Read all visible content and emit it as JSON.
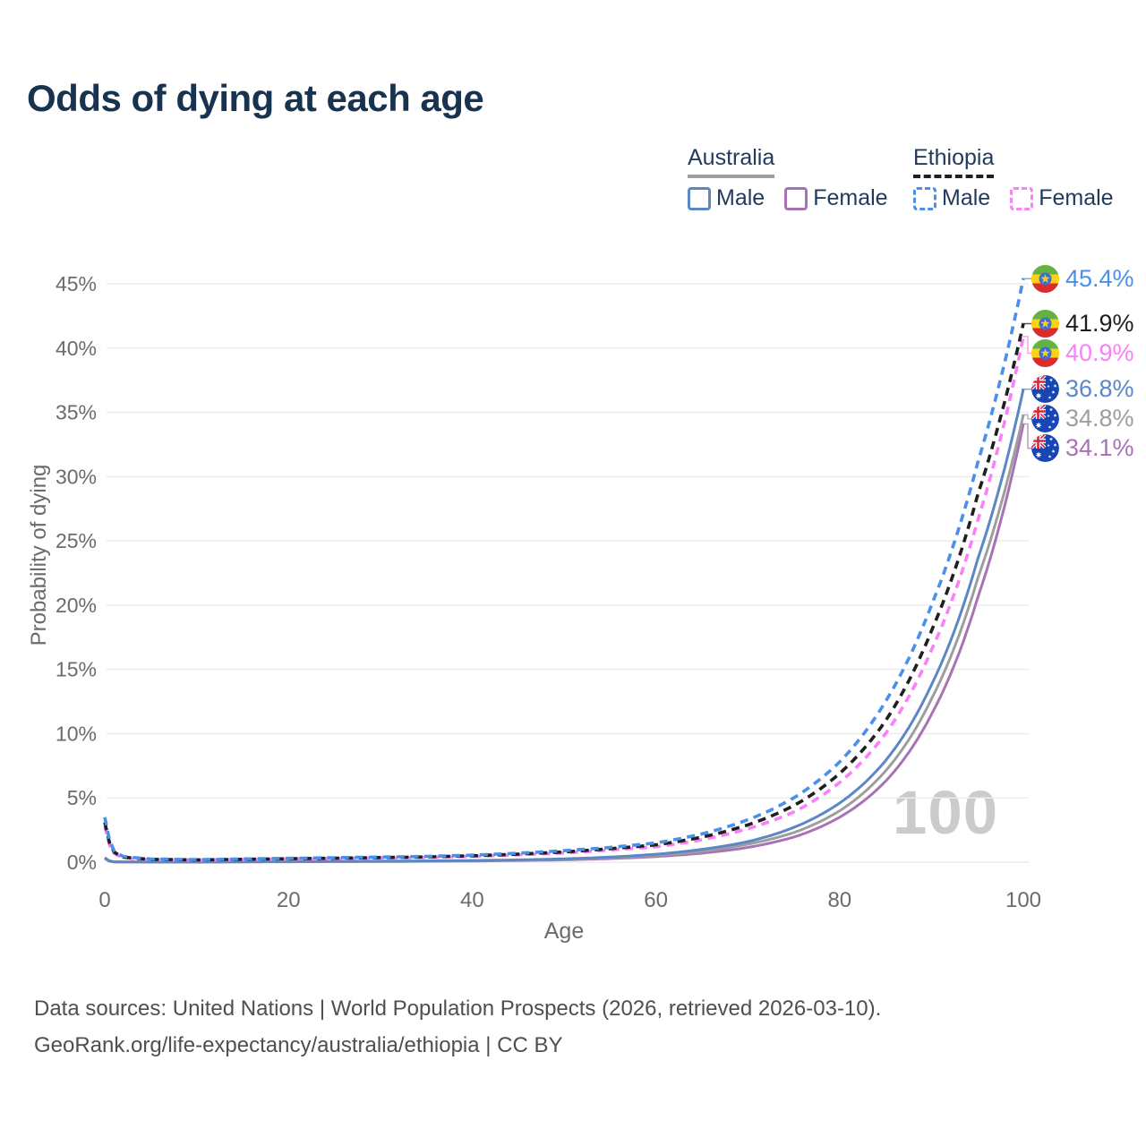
{
  "page": {
    "title": "Odds of dying at each age"
  },
  "legend": {
    "groups": [
      {
        "country": "Australia",
        "line_style": "solid",
        "items": [
          {
            "label": "Male"
          },
          {
            "label": "Female"
          }
        ]
      },
      {
        "country": "Ethiopia",
        "line_style": "dashed",
        "items": [
          {
            "label": "Male"
          },
          {
            "label": "Female"
          }
        ]
      }
    ]
  },
  "watermark": "100",
  "footer": {
    "line1": "Data sources: United Nations | World Population Prospects (2026, retrieved 2026-03-10).",
    "line2": "GeoRank.org/life-expectancy/australia/ethiopia | CC BY"
  },
  "chart_data": {
    "type": "line",
    "title": "Odds of dying at each age",
    "xlabel": "Age",
    "ylabel": "Probability of dying",
    "xlim": [
      0,
      100
    ],
    "ylim": [
      0,
      45
    ],
    "x_ticks": [
      0,
      20,
      40,
      60,
      80,
      100
    ],
    "y_ticks": [
      0,
      5,
      10,
      15,
      20,
      25,
      30,
      35,
      40,
      45
    ],
    "y_tick_suffix": "%",
    "grid": true,
    "legend_position": "top-right",
    "x": [
      0,
      1,
      2,
      5,
      10,
      15,
      20,
      25,
      30,
      35,
      40,
      45,
      50,
      55,
      60,
      65,
      70,
      75,
      80,
      85,
      90,
      95,
      100
    ],
    "series": [
      {
        "name": "Ethiopia Male",
        "country": "ethiopia",
        "sex": "male",
        "color": "#4a90e8",
        "dashed": true,
        "end_label": "45.4%",
        "values": [
          3.5,
          0.9,
          0.45,
          0.25,
          0.2,
          0.25,
          0.3,
          0.35,
          0.4,
          0.45,
          0.55,
          0.7,
          0.9,
          1.15,
          1.5,
          2.2,
          3.3,
          5.0,
          7.8,
          12.5,
          20.0,
          31.0,
          45.4
        ]
      },
      {
        "name": "Ethiopia (both sexes)",
        "country": "ethiopia",
        "sex": "both",
        "color": "#1f1f1f",
        "dashed": true,
        "end_label": "41.9%",
        "values": [
          3.1,
          0.8,
          0.4,
          0.22,
          0.18,
          0.22,
          0.27,
          0.31,
          0.36,
          0.41,
          0.5,
          0.63,
          0.8,
          1.05,
          1.35,
          1.95,
          2.9,
          4.4,
          6.9,
          11.0,
          18.0,
          28.5,
          41.9
        ]
      },
      {
        "name": "Ethiopia Female",
        "country": "ethiopia",
        "sex": "female",
        "color": "#f980f9",
        "dashed": true,
        "end_label": "40.9%",
        "values": [
          2.8,
          0.7,
          0.36,
          0.2,
          0.16,
          0.2,
          0.24,
          0.28,
          0.32,
          0.37,
          0.45,
          0.57,
          0.72,
          0.95,
          1.2,
          1.75,
          2.6,
          3.9,
          6.2,
          10.0,
          16.5,
          26.5,
          40.9
        ]
      },
      {
        "name": "Australia Male",
        "country": "australia",
        "sex": "male",
        "color": "#5b87c5",
        "dashed": false,
        "end_label": "36.8%",
        "values": [
          0.35,
          0.03,
          0.02,
          0.012,
          0.012,
          0.04,
          0.06,
          0.07,
          0.08,
          0.1,
          0.13,
          0.18,
          0.26,
          0.4,
          0.62,
          1.0,
          1.6,
          2.7,
          4.6,
          7.9,
          13.8,
          23.5,
          36.8
        ]
      },
      {
        "name": "Australia (both sexes)",
        "country": "australia",
        "sex": "both",
        "color": "#9e9e9e",
        "dashed": false,
        "end_label": "34.8%",
        "values": [
          0.3,
          0.025,
          0.018,
          0.01,
          0.01,
          0.03,
          0.045,
          0.055,
          0.065,
          0.085,
          0.11,
          0.15,
          0.22,
          0.34,
          0.52,
          0.85,
          1.4,
          2.3,
          4.0,
          7.1,
          12.7,
          22.0,
          34.8
        ]
      },
      {
        "name": "Australia Female",
        "country": "australia",
        "sex": "female",
        "color": "#a873b5",
        "dashed": false,
        "end_label": "34.1%",
        "values": [
          0.28,
          0.02,
          0.015,
          0.009,
          0.009,
          0.02,
          0.03,
          0.04,
          0.05,
          0.07,
          0.09,
          0.13,
          0.18,
          0.28,
          0.44,
          0.7,
          1.15,
          1.95,
          3.5,
          6.3,
          11.5,
          20.5,
          34.1
        ]
      }
    ]
  }
}
